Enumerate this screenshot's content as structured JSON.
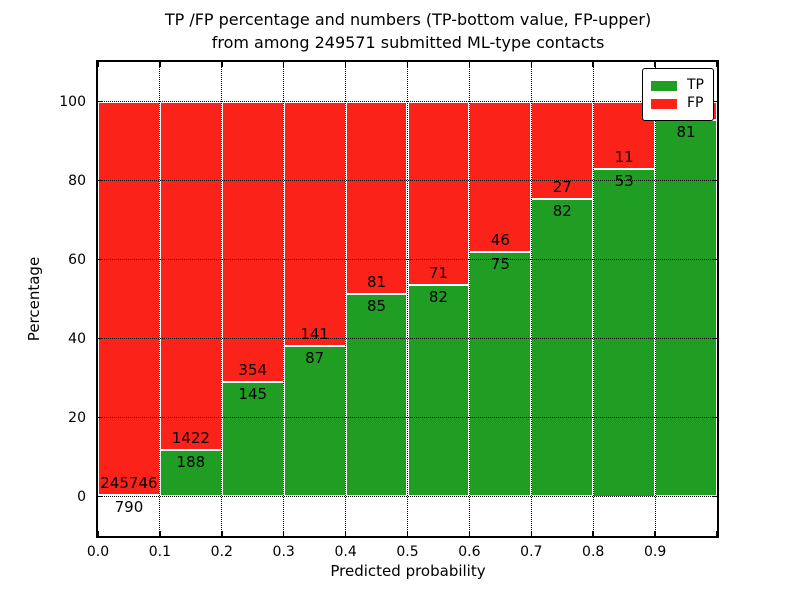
{
  "title": {
    "line1": "TP /FP percentage and numbers (TP-bottom value, FP-upper)",
    "line2": "from among 249571 submitted ML-type contacts"
  },
  "axes": {
    "ylabel": "Percentage",
    "xlabel": "Predicted probability",
    "ytick_labels": [
      "0",
      "20",
      "40",
      "60",
      "80",
      "100"
    ],
    "xtick_labels": [
      "0.0",
      "0.1",
      "0.2",
      "0.3",
      "0.4",
      "0.5",
      "0.6",
      "0.7",
      "0.8",
      "0.9"
    ]
  },
  "legend": {
    "items": [
      {
        "label": "TP",
        "color": "#1f9e23"
      },
      {
        "label": "FP",
        "color": "#fb221a"
      }
    ]
  },
  "colors": {
    "tp": "#1f9e23",
    "fp": "#fb221a",
    "bar_edge": "#ffffff",
    "grid": "#000000",
    "text": "#000000"
  },
  "chart_data": {
    "type": "bar",
    "stacked": true,
    "normalized_to_percent": true,
    "title": "TP /FP percentage and numbers (TP-bottom value, FP-upper) from among 249571 submitted ML-type contacts",
    "xlabel": "Predicted probability",
    "ylabel": "Percentage",
    "xlim": [
      0.0,
      1.0
    ],
    "ylim": [
      -10,
      110
    ],
    "yticks": [
      0,
      20,
      40,
      60,
      80,
      100
    ],
    "xticks": [
      0.0,
      0.1,
      0.2,
      0.3,
      0.4,
      0.5,
      0.6,
      0.7,
      0.8,
      0.9
    ],
    "grid": "dotted black, horizontal at yticks and vertical at bin edges",
    "legend_position": "upper right",
    "series_names": [
      "TP",
      "FP"
    ],
    "bins": [
      {
        "x0": 0.0,
        "x1": 0.1,
        "tp": 790,
        "fp": 245746,
        "tp_label": "790",
        "fp_label": "245746"
      },
      {
        "x0": 0.1,
        "x1": 0.2,
        "tp": 188,
        "fp": 1422,
        "tp_label": "188",
        "fp_label": "1422"
      },
      {
        "x0": 0.2,
        "x1": 0.3,
        "tp": 145,
        "fp": 354,
        "tp_label": "145",
        "fp_label": "354"
      },
      {
        "x0": 0.3,
        "x1": 0.4,
        "tp": 87,
        "fp": 141,
        "tp_label": "87",
        "fp_label": "141"
      },
      {
        "x0": 0.4,
        "x1": 0.5,
        "tp": 85,
        "fp": 81,
        "tp_label": "85",
        "fp_label": "81"
      },
      {
        "x0": 0.5,
        "x1": 0.6,
        "tp": 82,
        "fp": 71,
        "tp_label": "82",
        "fp_label": "71"
      },
      {
        "x0": 0.6,
        "x1": 0.7,
        "tp": 75,
        "fp": 46,
        "tp_label": "75",
        "fp_label": "46"
      },
      {
        "x0": 0.7,
        "x1": 0.8,
        "tp": 82,
        "fp": 27,
        "tp_label": "82",
        "fp_label": "27"
      },
      {
        "x0": 0.8,
        "x1": 0.9,
        "tp": 53,
        "fp": 11,
        "tp_label": "53",
        "fp_label": "11"
      },
      {
        "x0": 0.9,
        "x1": 1.0,
        "tp": 81,
        "fp": 4,
        "tp_label": "81",
        "fp_label": ""
      }
    ]
  }
}
